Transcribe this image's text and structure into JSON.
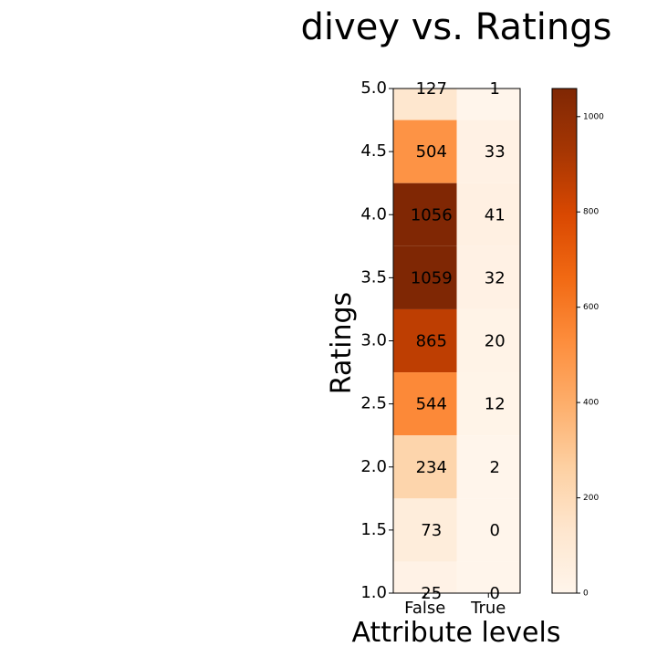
{
  "chart_data": {
    "type": "heatmap",
    "title": "divey vs. Ratings",
    "xlabel": "Attribute levels",
    "ylabel": "Ratings",
    "x_categories": [
      "False",
      "True"
    ],
    "y_categories": [
      "5.0",
      "4.5",
      "4.0",
      "3.5",
      "3.0",
      "2.5",
      "2.0",
      "1.5",
      "1.0"
    ],
    "values": [
      [
        127,
        1
      ],
      [
        504,
        33
      ],
      [
        1056,
        41
      ],
      [
        1059,
        32
      ],
      [
        865,
        20
      ],
      [
        544,
        12
      ],
      [
        234,
        2
      ],
      [
        73,
        0
      ],
      [
        25,
        0
      ]
    ],
    "colormap": "Oranges",
    "vmin": 0,
    "vmax": 1059,
    "colorbar_ticks": [
      "0",
      "200",
      "400",
      "600",
      "800",
      "1000"
    ],
    "y_ticks": [
      "5.0",
      "4.5",
      "4.0",
      "3.5",
      "3.0",
      "2.5",
      "2.0",
      "1.5",
      "1.0"
    ]
  }
}
